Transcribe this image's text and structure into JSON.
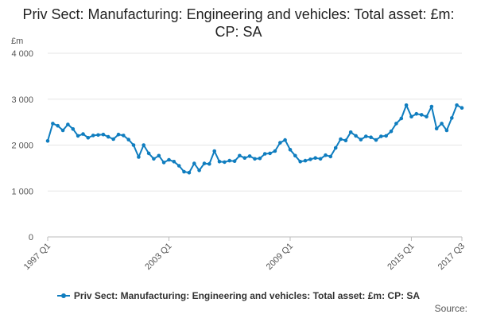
{
  "chart_data": {
    "type": "line",
    "title": "Priv Sect: Manufacturing: Engineering and vehicles: Total asset: £m: CP: SA",
    "unit_label": "£m",
    "ylim": [
      0,
      4000
    ],
    "y_ticks": [
      0,
      1000,
      2000,
      3000,
      4000
    ],
    "y_tick_labels": [
      "0",
      "1 000",
      "2 000",
      "3 000",
      "4 000"
    ],
    "x_tick_labels": [
      "1997 Q1",
      "2003 Q1",
      "2009 Q1",
      "2015 Q1",
      "2017 Q3"
    ],
    "x_tick_indices": [
      0,
      24,
      48,
      72,
      82
    ],
    "grid": true,
    "legend_position": "bottom",
    "color": "#0f7dbf",
    "series": [
      {
        "name": "Priv Sect: Manufacturing: Engineering and vehicles: Total asset: £m: CP: SA",
        "x": [
          "1997 Q1",
          "1997 Q2",
          "1997 Q3",
          "1997 Q4",
          "1998 Q1",
          "1998 Q2",
          "1998 Q3",
          "1998 Q4",
          "1999 Q1",
          "1999 Q2",
          "1999 Q3",
          "1999 Q4",
          "2000 Q1",
          "2000 Q2",
          "2000 Q3",
          "2000 Q4",
          "2001 Q1",
          "2001 Q2",
          "2001 Q3",
          "2001 Q4",
          "2002 Q1",
          "2002 Q2",
          "2002 Q3",
          "2002 Q4",
          "2003 Q1",
          "2003 Q2",
          "2003 Q3",
          "2003 Q4",
          "2004 Q1",
          "2004 Q2",
          "2004 Q3",
          "2004 Q4",
          "2005 Q1",
          "2005 Q2",
          "2005 Q3",
          "2005 Q4",
          "2006 Q1",
          "2006 Q2",
          "2006 Q3",
          "2006 Q4",
          "2007 Q1",
          "2007 Q2",
          "2007 Q3",
          "2007 Q4",
          "2008 Q1",
          "2008 Q2",
          "2008 Q3",
          "2008 Q4",
          "2009 Q1",
          "2009 Q2",
          "2009 Q3",
          "2009 Q4",
          "2010 Q1",
          "2010 Q2",
          "2010 Q3",
          "2010 Q4",
          "2011 Q1",
          "2011 Q2",
          "2011 Q3",
          "2011 Q4",
          "2012 Q1",
          "2012 Q2",
          "2012 Q3",
          "2012 Q4",
          "2013 Q1",
          "2013 Q2",
          "2013 Q3",
          "2013 Q4",
          "2014 Q1",
          "2014 Q2",
          "2014 Q3",
          "2014 Q4",
          "2015 Q1",
          "2015 Q2",
          "2015 Q3",
          "2015 Q4",
          "2016 Q1",
          "2016 Q2",
          "2016 Q3",
          "2016 Q4",
          "2017 Q1",
          "2017 Q2",
          "2017 Q3"
        ],
        "values": [
          2090,
          2470,
          2420,
          2320,
          2450,
          2350,
          2200,
          2240,
          2160,
          2210,
          2220,
          2230,
          2180,
          2130,
          2230,
          2210,
          2120,
          2000,
          1740,
          2000,
          1820,
          1700,
          1770,
          1620,
          1680,
          1640,
          1550,
          1420,
          1400,
          1600,
          1450,
          1600,
          1590,
          1870,
          1640,
          1630,
          1660,
          1650,
          1770,
          1720,
          1760,
          1700,
          1710,
          1810,
          1820,
          1870,
          2050,
          2110,
          1900,
          1770,
          1640,
          1660,
          1690,
          1720,
          1700,
          1780,
          1750,
          1940,
          2130,
          2100,
          2280,
          2200,
          2120,
          2190,
          2170,
          2110,
          2190,
          2200,
          2300,
          2470,
          2580,
          2870,
          2620,
          2680,
          2660,
          2620,
          2840,
          2360,
          2470,
          2320,
          2590,
          2870,
          2810
        ]
      }
    ]
  },
  "legend": {
    "label": "Priv Sect: Manufacturing: Engineering and vehicles: Total asset: £m: CP: SA"
  },
  "source_label": "Source:"
}
